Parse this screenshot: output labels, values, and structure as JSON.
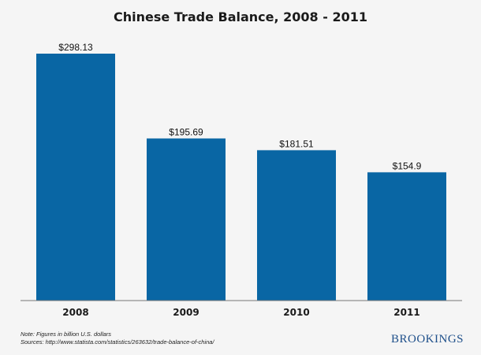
{
  "chart_data": {
    "type": "bar",
    "title": "Chinese Trade Balance, 2008 - 2011",
    "categories": [
      "2008",
      "2009",
      "2010",
      "2011"
    ],
    "values": [
      298.13,
      195.69,
      181.51,
      154.9
    ],
    "value_labels": [
      "$298.13",
      "$195.69",
      "$181.51",
      "$154.9"
    ],
    "ylim": [
      0,
      300
    ],
    "xlabel": "",
    "ylabel": "",
    "grid": false,
    "legend": "none",
    "colors": {
      "bar": "#0966a4"
    }
  },
  "footer": {
    "note": "Note: Figures in billion U.S. dollars",
    "source": "Sources: http://www.statista.com/statistics/263632/trade-balance-of-china/",
    "brand": "BROOKINGS"
  }
}
